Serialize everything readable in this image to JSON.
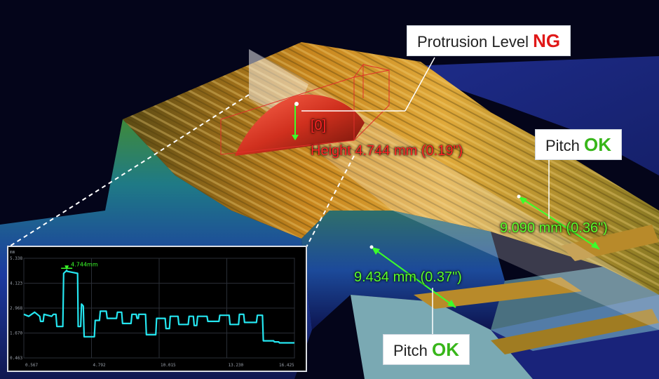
{
  "callouts": {
    "protrusion": {
      "label": "Protrusion Level",
      "status": "NG",
      "status_color": "#e01818"
    },
    "pitch_right": {
      "label": "Pitch",
      "status": "OK",
      "status_color": "#38b61a"
    },
    "pitch_bottom": {
      "label": "Pitch",
      "status": "OK",
      "status_color": "#38b61a"
    }
  },
  "measurements": {
    "height_index": "[0]",
    "height": "Height 4.744 mm (0.19\")",
    "pitch_1": "9.090 mm (0.36\")",
    "pitch_2": "9.434 mm (0.37\")"
  },
  "profile_graph": {
    "y_unit": "mm",
    "y_ticks": [
      "5.338",
      "4.123",
      "2.968",
      "1.670",
      "0.463"
    ],
    "x_ticks": [
      "0.567",
      "4.792",
      "10.015",
      "13.230",
      "16.425"
    ],
    "peak_label": "4.744mm",
    "line_color": "#25e6f0",
    "marker_color": "#3cff2a"
  },
  "chart_data": {
    "type": "line",
    "title": "",
    "xlabel": "",
    "ylabel": "mm",
    "xlim": [
      0.567,
      16.425
    ],
    "ylim": [
      0.463,
      5.338
    ],
    "annotations": [
      "4.744mm"
    ],
    "series": [
      {
        "x": [
          0.567,
          0.85,
          1.2,
          1.5,
          1.55,
          1.7,
          1.75,
          2.2,
          2.3,
          2.45,
          2.5,
          2.85,
          2.9,
          3.08,
          3.1,
          3.72,
          3.75,
          3.9,
          3.95,
          4.05,
          4.1,
          4.7,
          4.75,
          5.0,
          5.05,
          5.4,
          5.45,
          6.0,
          6.05,
          6.3,
          6.35,
          6.85,
          6.9,
          7.15,
          7.2,
          7.28,
          7.3,
          7.7,
          7.75,
          8.3,
          8.35,
          8.85,
          8.9,
          9.1,
          9.15,
          9.6,
          9.65,
          10.2,
          10.25,
          10.5,
          10.55,
          10.7,
          10.75,
          11.3,
          11.35,
          12.0,
          12.05,
          12.6,
          12.65,
          13.15,
          13.2,
          13.45,
          13.5,
          14.2,
          14.25,
          14.55,
          14.6,
          15.2,
          15.25,
          15.5,
          15.55,
          16.0,
          16.425
        ],
        "y": [
          2.6,
          2.5,
          2.7,
          2.5,
          2.25,
          2.25,
          2.6,
          2.5,
          2.6,
          2.6,
          2.0,
          2.0,
          4.6,
          4.744,
          4.7,
          4.6,
          2.0,
          2.0,
          3.1,
          3.0,
          1.5,
          1.5,
          2.3,
          2.3,
          2.75,
          2.75,
          2.4,
          2.4,
          2.7,
          2.7,
          2.15,
          2.15,
          2.6,
          2.6,
          2.4,
          2.4,
          2.6,
          2.6,
          1.6,
          1.6,
          2.4,
          2.4,
          1.9,
          1.9,
          2.5,
          2.5,
          2.1,
          2.1,
          2.5,
          2.5,
          2.05,
          2.05,
          2.5,
          2.5,
          2.25,
          2.25,
          2.55,
          2.55,
          2.1,
          2.1,
          2.6,
          2.6,
          2.2,
          2.2,
          2.55,
          2.55,
          1.3,
          1.3,
          1.25,
          1.25,
          1.2,
          1.2,
          1.2
        ]
      }
    ]
  }
}
